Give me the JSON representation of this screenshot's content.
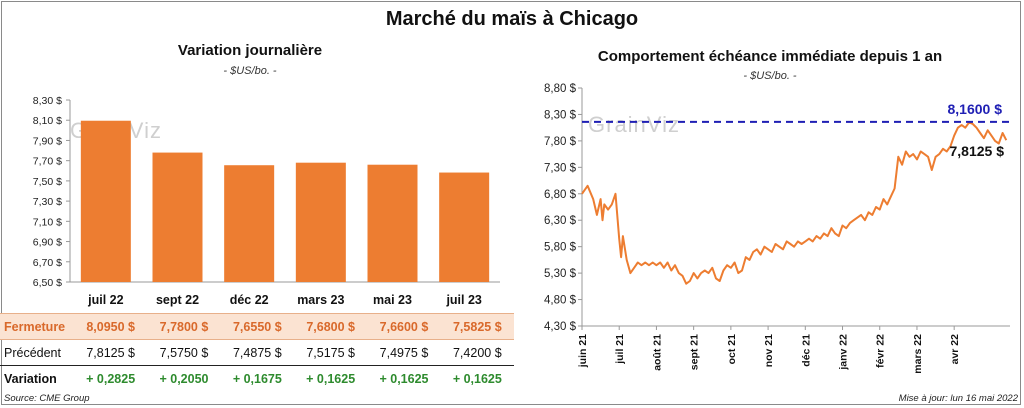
{
  "title": "Marché du maïs à Chicago",
  "left_chart": {
    "subtitle": "Variation journalière",
    "unit": "- $US/bo. -",
    "watermark": "GrainViz"
  },
  "right_chart": {
    "subtitle": "Comportement échéance immédiate depuis 1 an",
    "unit": "- $US/bo. -",
    "watermark": "GrainViz",
    "ref_label": "8,1600 $",
    "last_label": "7,8125 $"
  },
  "table": {
    "rows": [
      {
        "label": "Fermeture",
        "values": [
          "8,0950 $",
          "7,7800 $",
          "7,6550 $",
          "7,6800 $",
          "7,6600 $",
          "7,5825 $"
        ]
      },
      {
        "label": "Précédent",
        "values": [
          "7,8125 $",
          "7,5750 $",
          "7,4875 $",
          "7,5175 $",
          "7,4975 $",
          "7,4200 $"
        ]
      },
      {
        "label": "Variation",
        "values": [
          "+ 0,2825",
          "+ 0,2050",
          "+ 0,1675",
          "+ 0,1625",
          "+ 0,1625",
          "+ 0,1625"
        ]
      }
    ]
  },
  "footer": {
    "source": "Source: CME Group",
    "update": "Mise à jour: lun 16 mai 2022"
  },
  "colors": {
    "bar": "#ed7d31",
    "line": "#ed7d31",
    "ref": "#1f1fb4",
    "grid": "#d9d9d9"
  },
  "chart_data": [
    {
      "type": "bar",
      "title": "Variation journalière",
      "ylabel": "$US/bo.",
      "categories": [
        "juil 22",
        "sept 22",
        "déc 22",
        "mars 23",
        "mai 23",
        "juil 23"
      ],
      "values": [
        8.095,
        7.78,
        7.655,
        7.68,
        7.66,
        7.5825
      ],
      "ylim": [
        6.5,
        8.3
      ],
      "yticks": [
        6.5,
        6.7,
        6.9,
        7.1,
        7.3,
        7.5,
        7.7,
        7.9,
        8.1,
        8.3
      ],
      "ytick_labels": [
        "6,50 $",
        "6,70 $",
        "6,90 $",
        "7,10 $",
        "7,30 $",
        "7,50 $",
        "7,70 $",
        "7,90 $",
        "8,10 $",
        "8,30 $"
      ]
    },
    {
      "type": "line",
      "title": "Comportement échéance immédiate depuis 1 an",
      "ylabel": "$US/bo.",
      "ylim": [
        4.3,
        8.8
      ],
      "yticks": [
        4.3,
        4.8,
        5.3,
        5.8,
        6.3,
        6.8,
        7.3,
        7.8,
        8.3,
        8.8
      ],
      "ytick_labels": [
        "4,30 $",
        "4,80 $",
        "5,30 $",
        "5,80 $",
        "6,30 $",
        "6,80 $",
        "7,30 $",
        "7,80 $",
        "8,30 $",
        "8,80 $"
      ],
      "x_labels": [
        "juin 21",
        "juil 21",
        "août 21",
        "sept 21",
        "oct 21",
        "nov 21",
        "déc 21",
        "janv 22",
        "févr 22",
        "mars 22",
        "avr 22"
      ],
      "x_range": [
        0,
        11.5
      ],
      "reference_line": 8.16,
      "last_value": 7.8125,
      "series": [
        {
          "name": "Échéance immédiate",
          "x": [
            0.0,
            0.15,
            0.3,
            0.4,
            0.5,
            0.55,
            0.6,
            0.7,
            0.8,
            0.9,
            1.0,
            1.05,
            1.1,
            1.2,
            1.3,
            1.4,
            1.5,
            1.6,
            1.7,
            1.8,
            1.9,
            2.0,
            2.1,
            2.2,
            2.3,
            2.4,
            2.5,
            2.6,
            2.7,
            2.8,
            2.9,
            3.0,
            3.1,
            3.2,
            3.3,
            3.4,
            3.5,
            3.6,
            3.7,
            3.8,
            3.9,
            4.0,
            4.1,
            4.2,
            4.3,
            4.4,
            4.5,
            4.6,
            4.7,
            4.8,
            4.9,
            5.0,
            5.1,
            5.2,
            5.3,
            5.4,
            5.5,
            5.6,
            5.7,
            5.8,
            5.9,
            6.0,
            6.1,
            6.2,
            6.3,
            6.4,
            6.5,
            6.6,
            6.7,
            6.8,
            6.9,
            7.0,
            7.1,
            7.2,
            7.3,
            7.4,
            7.5,
            7.6,
            7.7,
            7.8,
            7.9,
            8.0,
            8.1,
            8.2,
            8.3,
            8.4,
            8.5,
            8.6,
            8.7,
            8.8,
            8.9,
            9.0,
            9.1,
            9.2,
            9.3,
            9.4,
            9.5,
            9.6,
            9.7,
            9.8,
            9.9,
            10.0,
            10.1,
            10.2,
            10.3,
            10.4,
            10.5,
            10.6,
            10.7,
            10.8,
            10.9,
            11.0,
            11.1,
            11.2,
            11.3,
            11.4
          ],
          "y": [
            6.8,
            6.95,
            6.7,
            6.4,
            6.7,
            6.3,
            6.6,
            6.5,
            6.6,
            6.8,
            5.95,
            5.6,
            6.0,
            5.55,
            5.3,
            5.4,
            5.5,
            5.45,
            5.5,
            5.45,
            5.5,
            5.45,
            5.5,
            5.4,
            5.5,
            5.35,
            5.45,
            5.3,
            5.25,
            5.1,
            5.15,
            5.3,
            5.2,
            5.3,
            5.35,
            5.3,
            5.4,
            5.2,
            5.15,
            5.35,
            5.45,
            5.4,
            5.5,
            5.3,
            5.35,
            5.6,
            5.55,
            5.7,
            5.75,
            5.65,
            5.8,
            5.75,
            5.7,
            5.85,
            5.8,
            5.75,
            5.9,
            5.85,
            5.8,
            5.9,
            5.85,
            5.9,
            5.95,
            5.9,
            6.0,
            5.95,
            6.05,
            6.0,
            6.15,
            6.05,
            6.0,
            6.2,
            6.15,
            6.25,
            6.3,
            6.35,
            6.4,
            6.3,
            6.45,
            6.4,
            6.55,
            6.5,
            6.7,
            6.6,
            6.75,
            6.9,
            7.5,
            7.35,
            7.6,
            7.5,
            7.55,
            7.45,
            7.6,
            7.55,
            7.5,
            7.25,
            7.5,
            7.55,
            7.65,
            7.6,
            7.7,
            7.9,
            8.05,
            8.1,
            8.05,
            8.15,
            8.12,
            8.05,
            7.95,
            7.85,
            8.0,
            7.9,
            7.8,
            7.75,
            7.95,
            7.8125
          ]
        }
      ]
    }
  ]
}
